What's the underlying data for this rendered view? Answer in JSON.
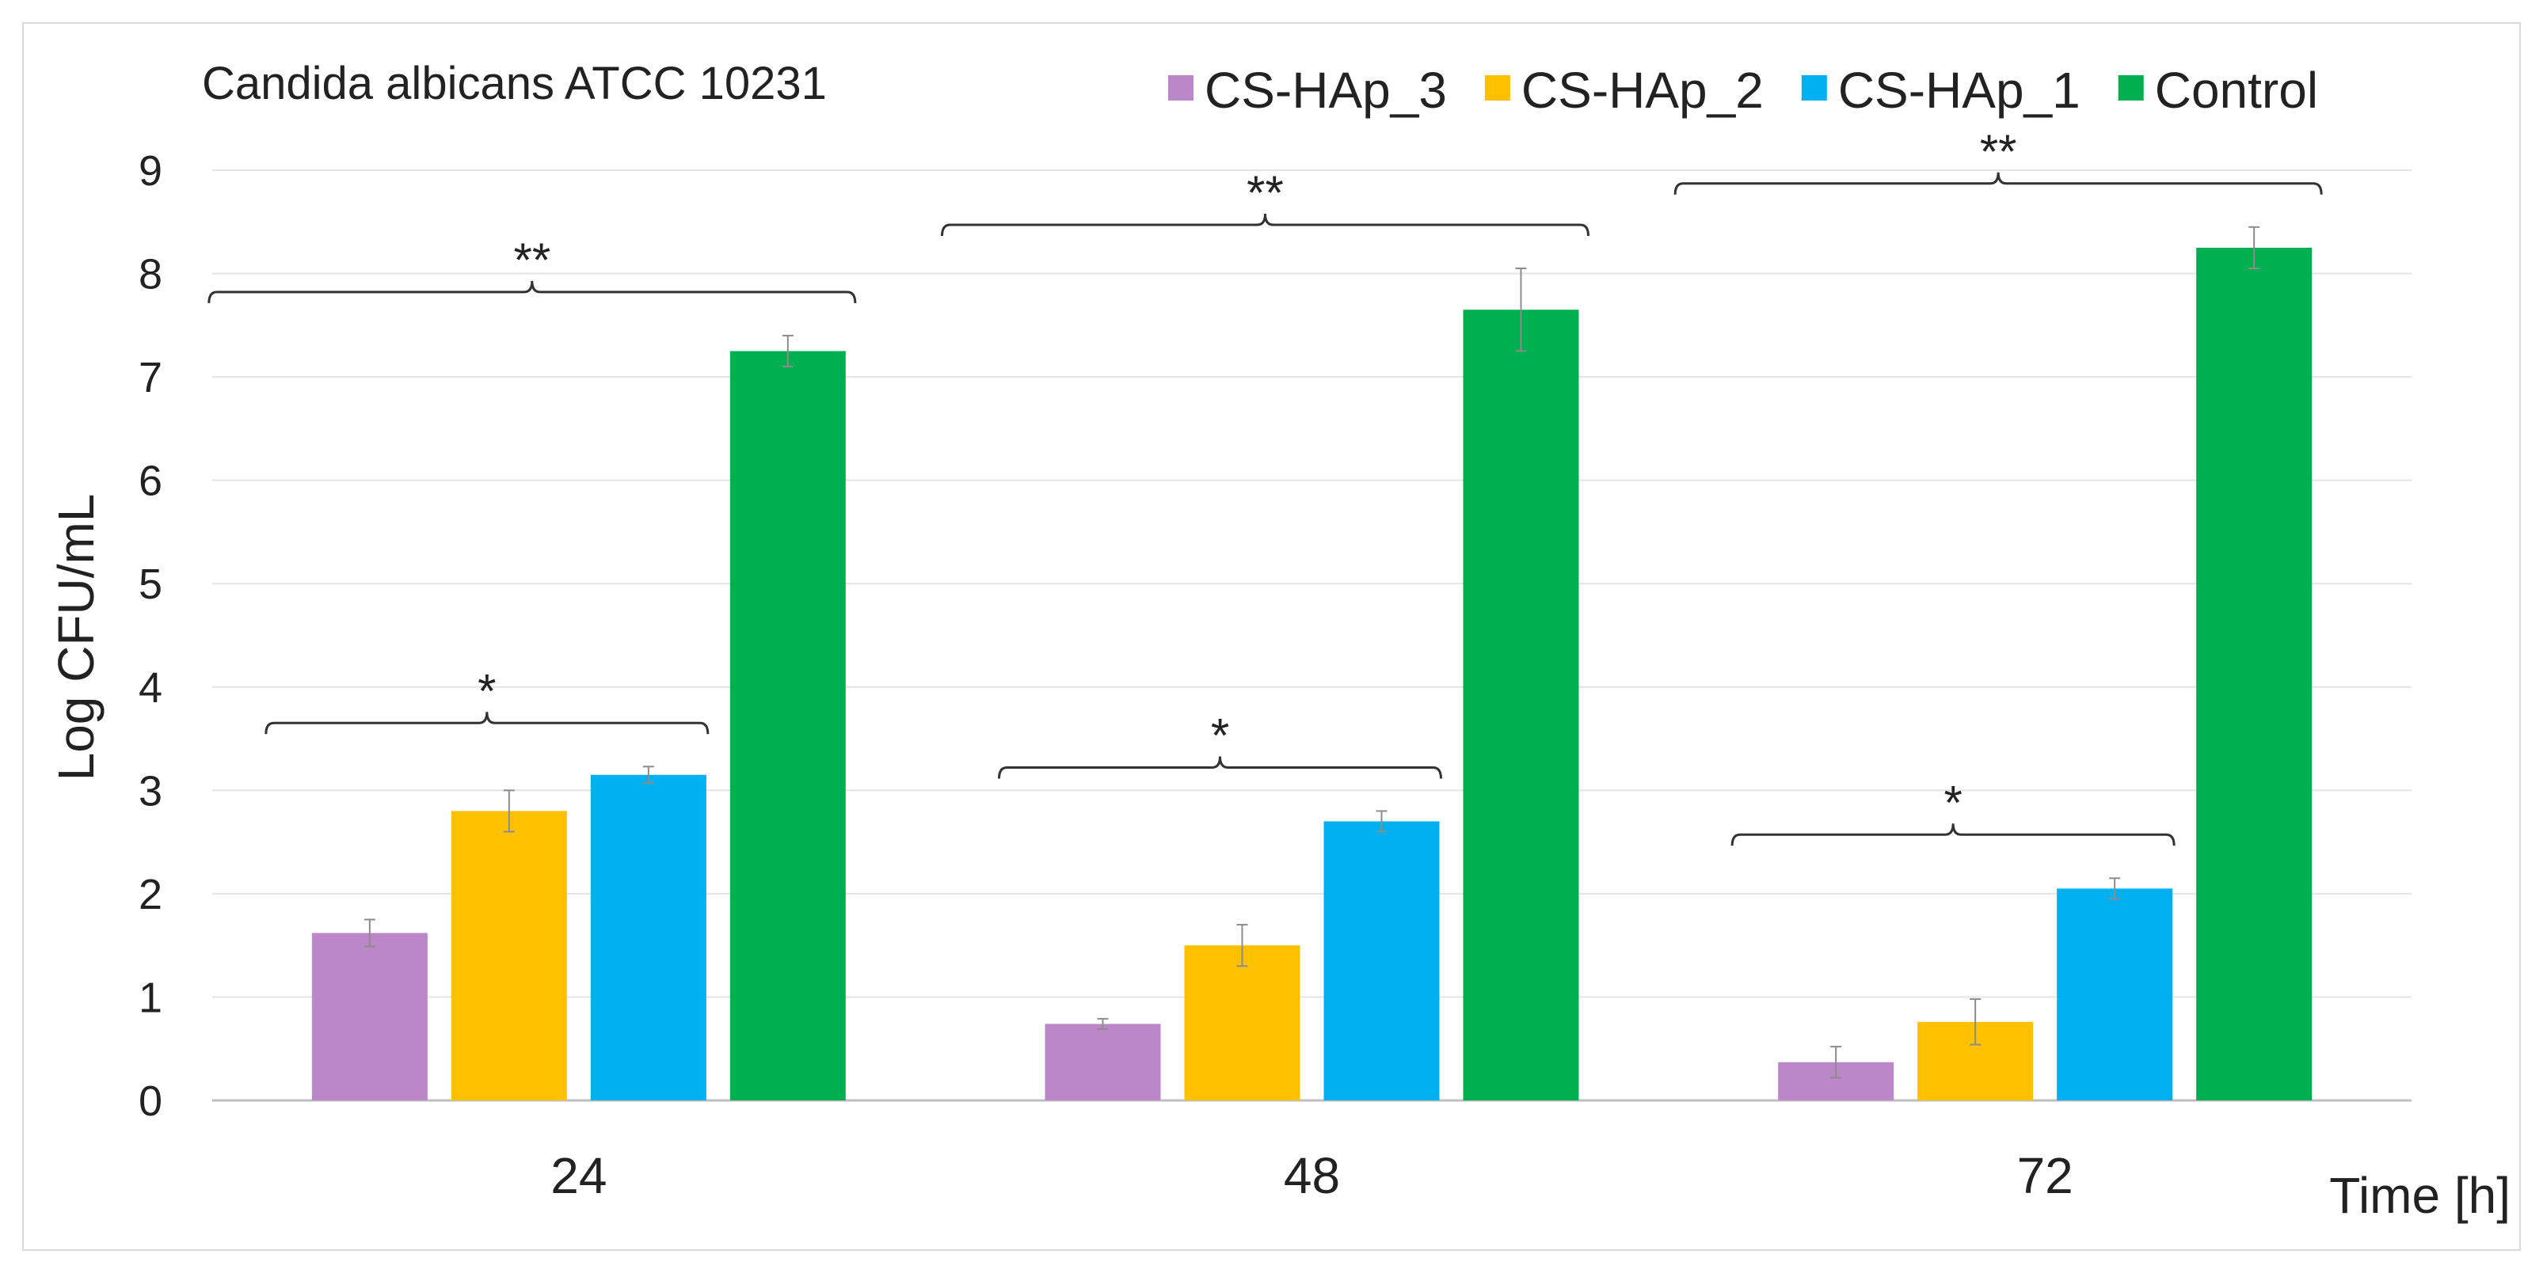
{
  "chart_data": {
    "type": "bar",
    "title": "Candida albicans ATCC 10231",
    "xlabel": "Time [h]",
    "ylabel": "Log CFU/mL",
    "ylim": [
      0,
      9
    ],
    "yticks": [
      0,
      1,
      2,
      3,
      4,
      5,
      6,
      7,
      8,
      9
    ],
    "categories": [
      "24",
      "48",
      "72"
    ],
    "series": [
      {
        "name": "CS-HAp_3",
        "color": "#bc87c9",
        "values": [
          1.62,
          0.74,
          0.37
        ],
        "errors": [
          0.13,
          0.05,
          0.15
        ]
      },
      {
        "name": "CS-HAp_2",
        "color": "#ffc000",
        "values": [
          2.8,
          1.5,
          0.76
        ],
        "errors": [
          0.2,
          0.2,
          0.22
        ]
      },
      {
        "name": "CS-HAp_1",
        "color": "#00b0f0",
        "values": [
          3.15,
          2.7,
          2.05
        ],
        "errors": [
          0.08,
          0.1,
          0.1
        ]
      },
      {
        "name": "Control",
        "color": "#00b050",
        "values": [
          7.25,
          7.65,
          8.25
        ],
        "errors": [
          0.15,
          0.4,
          0.2
        ]
      }
    ],
    "legend_order": [
      "CS-HAp_3",
      "CS-HAp_2",
      "CS-HAp_1",
      "Control"
    ],
    "grid": true,
    "annotations": [
      {
        "label": "**",
        "group": 0,
        "span": "all"
      },
      {
        "label": "*",
        "group": 0,
        "span": "treatments"
      },
      {
        "label": "**",
        "group": 1,
        "span": "all"
      },
      {
        "label": "*",
        "group": 1,
        "span": "treatments"
      },
      {
        "label": "**",
        "group": 2,
        "span": "all"
      },
      {
        "label": "*",
        "group": 2,
        "span": "treatments"
      }
    ]
  }
}
